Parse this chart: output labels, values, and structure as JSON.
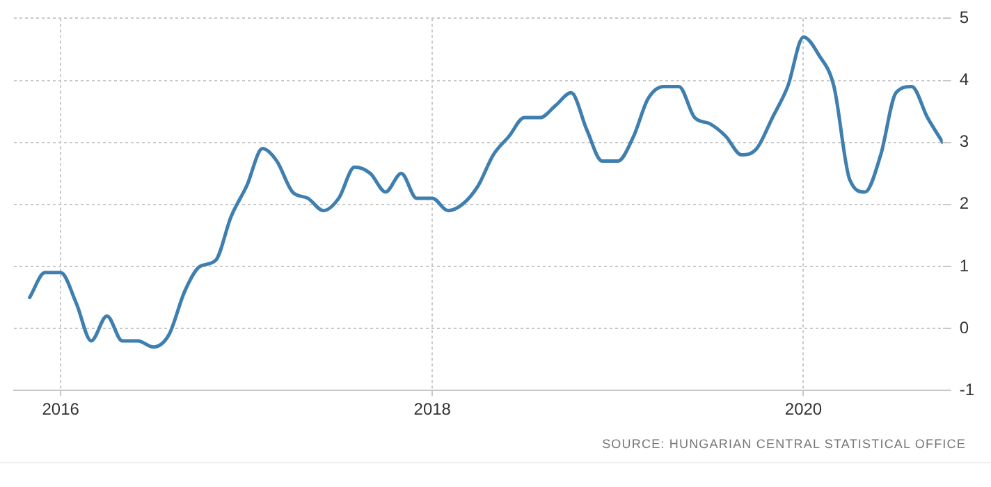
{
  "chart_data": {
    "type": "line",
    "x": [
      "2015-11",
      "2015-12",
      "2016-01",
      "2016-02",
      "2016-03",
      "2016-04",
      "2016-05",
      "2016-06",
      "2016-07",
      "2016-08",
      "2016-09",
      "2016-10",
      "2016-11",
      "2016-12",
      "2017-01",
      "2017-02",
      "2017-03",
      "2017-04",
      "2017-05",
      "2017-06",
      "2017-07",
      "2017-08",
      "2017-09",
      "2017-10",
      "2017-11",
      "2017-12",
      "2018-01",
      "2018-02",
      "2018-03",
      "2018-04",
      "2018-05",
      "2018-06",
      "2018-07",
      "2018-08",
      "2018-09",
      "2018-10",
      "2018-11",
      "2018-12",
      "2019-01",
      "2019-02",
      "2019-03",
      "2019-04",
      "2019-05",
      "2019-06",
      "2019-07",
      "2019-08",
      "2019-09",
      "2019-10",
      "2019-11",
      "2019-12",
      "2020-01",
      "2020-02",
      "2020-03",
      "2020-04",
      "2020-05",
      "2020-06",
      "2020-07",
      "2020-08",
      "2020-09",
      "2020-10"
    ],
    "series": [
      {
        "color": "#3f7fb0",
        "values": [
          0.5,
          0.9,
          0.9,
          0.4,
          -0.2,
          0.2,
          -0.2,
          -0.2,
          -0.3,
          -0.1,
          0.6,
          1.0,
          1.1,
          1.8,
          2.3,
          2.9,
          2.7,
          2.2,
          2.1,
          1.9,
          2.1,
          2.6,
          2.5,
          2.2,
          2.5,
          2.1,
          2.1,
          1.9,
          2.0,
          2.3,
          2.8,
          3.1,
          3.4,
          3.4,
          3.6,
          3.8,
          3.2,
          2.7,
          2.7,
          3.1,
          3.7,
          3.9,
          3.9,
          3.4,
          3.3,
          3.1,
          2.8,
          2.9,
          3.4,
          3.9,
          4.7,
          4.4,
          3.9,
          2.4,
          2.2,
          2.8,
          3.8,
          3.9,
          3.4,
          3.0
        ]
      }
    ],
    "xlim": [
      "2015-10",
      "2020-10"
    ],
    "xticks": [
      {
        "value": "2016-01",
        "label": "2016"
      },
      {
        "value": "2018-01",
        "label": "2018"
      },
      {
        "value": "2020-01",
        "label": "2020"
      }
    ],
    "ylim": [
      -1,
      5
    ],
    "yticks": [
      -1,
      0,
      1,
      2,
      3,
      4,
      5
    ],
    "grid": true,
    "legend": false,
    "marker": "none",
    "line_style": "solid",
    "annotations": [
      "SOURCE: HUNGARIAN CENTRAL STATISTICAL OFFICE"
    ]
  }
}
